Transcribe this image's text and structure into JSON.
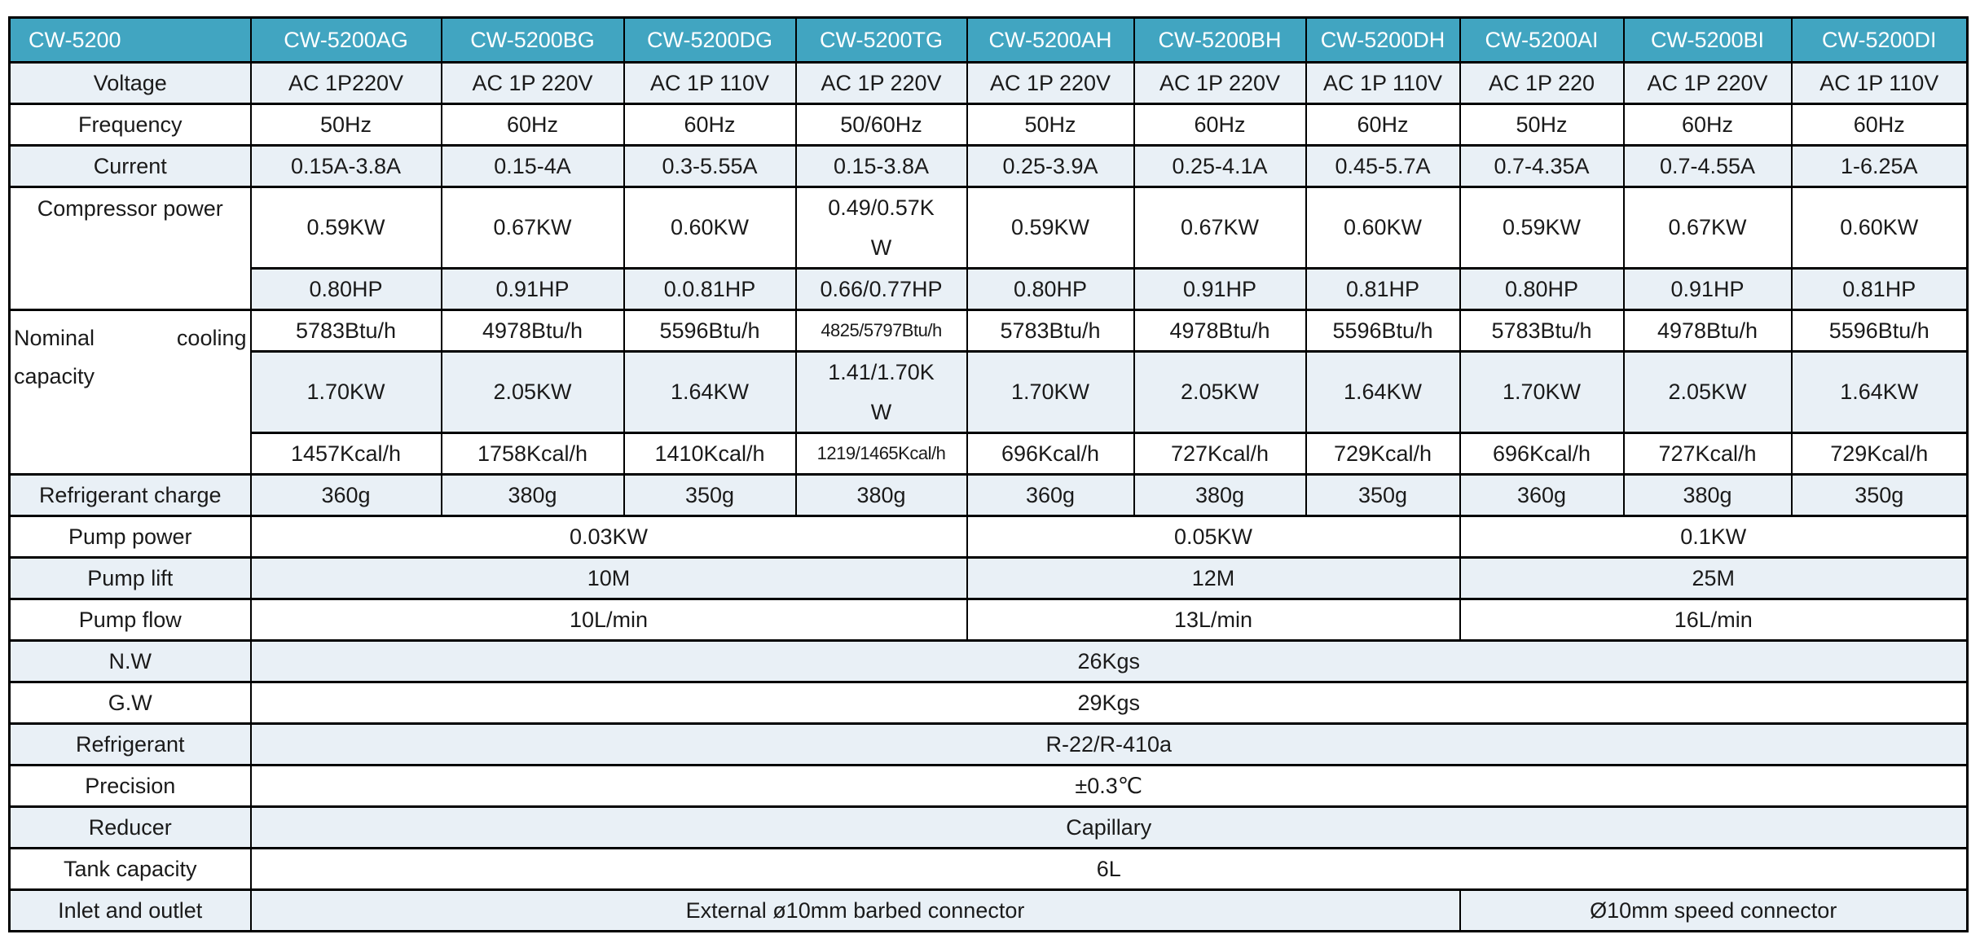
{
  "colors": {
    "header_bg": "#41a5c1",
    "header_text": "#ffffff",
    "shade_row_bg": "#e9f0f6",
    "border": "#000000"
  },
  "table": {
    "header": {
      "label": "CW-5200",
      "models": [
        "CW-5200AG",
        "CW-5200BG",
        "CW-5200DG",
        "CW-5200TG",
        "CW-5200AH",
        "CW-5200BH",
        "CW-5200DH",
        "CW-5200AI",
        "CW-5200BI",
        "CW-5200DI"
      ]
    },
    "rows": [
      {
        "name": "voltage",
        "shade": true,
        "label": {
          "t": "Voltage"
        },
        "cells": [
          {
            "t": "AC 1P220V"
          },
          {
            "t": "AC 1P 220V"
          },
          {
            "t": "AC 1P 110V"
          },
          {
            "t": "AC 1P 220V"
          },
          {
            "t": "AC 1P 220V"
          },
          {
            "t": "AC 1P 220V"
          },
          {
            "t": "AC 1P 110V"
          },
          {
            "t": "AC 1P 220"
          },
          {
            "t": "AC 1P 220V"
          },
          {
            "t": "AC 1P 110V"
          }
        ]
      },
      {
        "name": "frequency",
        "shade": false,
        "label": {
          "t": "Frequency"
        },
        "cells": [
          {
            "t": "50Hz"
          },
          {
            "t": "60Hz"
          },
          {
            "t": "60Hz"
          },
          {
            "t": "50/60Hz"
          },
          {
            "t": "50Hz"
          },
          {
            "t": "60Hz"
          },
          {
            "t": "60Hz"
          },
          {
            "t": "50Hz"
          },
          {
            "t": "60Hz"
          },
          {
            "t": "60Hz"
          }
        ]
      },
      {
        "name": "current",
        "shade": true,
        "label": {
          "t": "Current"
        },
        "cells": [
          {
            "t": "0.15A-3.8A"
          },
          {
            "t": "0.15-4A"
          },
          {
            "t": "0.3-5.55A"
          },
          {
            "t": "0.15-3.8A"
          },
          {
            "t": "0.25-3.9A"
          },
          {
            "t": "0.25-4.1A"
          },
          {
            "t": "0.45-5.7A"
          },
          {
            "t": "0.7-4.35A"
          },
          {
            "t": "0.7-4.55A"
          },
          {
            "t": "1-6.25A"
          }
        ]
      },
      {
        "name": "compressor-power-kw",
        "shade": false,
        "tall": true,
        "label": {
          "t": "Compressor power",
          "rows": 2,
          "top": true
        },
        "cells": [
          {
            "t": "0.59KW"
          },
          {
            "t": "0.67KW"
          },
          {
            "t": "0.60KW"
          },
          {
            "t": "0.49/0.57K\nW",
            "pre": true
          },
          {
            "t": "0.59KW"
          },
          {
            "t": "0.67KW"
          },
          {
            "t": "0.60KW"
          },
          {
            "t": "0.59KW"
          },
          {
            "t": "0.67KW"
          },
          {
            "t": "0.60KW"
          }
        ]
      },
      {
        "name": "compressor-power-hp",
        "shade": true,
        "cells": [
          {
            "t": "0.80HP"
          },
          {
            "t": "0.91HP"
          },
          {
            "t": "0.0.81HP"
          },
          {
            "t": "0.66/0.77HP"
          },
          {
            "t": "0.80HP"
          },
          {
            "t": "0.91HP"
          },
          {
            "t": "0.81HP"
          },
          {
            "t": "0.80HP"
          },
          {
            "t": "0.91HP"
          },
          {
            "t": "0.81HP"
          }
        ]
      },
      {
        "name": "cooling-capacity-btu",
        "shade": false,
        "label": {
          "t": "Nominal cooling capacity",
          "rows": 3,
          "top": true,
          "justify": true
        },
        "cells": [
          {
            "t": "5783Btu/h"
          },
          {
            "t": "4978Btu/h"
          },
          {
            "t": "5596Btu/h"
          },
          {
            "t": "4825/5797Btu/h",
            "small": true
          },
          {
            "t": "5783Btu/h"
          },
          {
            "t": "4978Btu/h"
          },
          {
            "t": "5596Btu/h"
          },
          {
            "t": "5783Btu/h"
          },
          {
            "t": "4978Btu/h"
          },
          {
            "t": "5596Btu/h"
          }
        ]
      },
      {
        "name": "cooling-capacity-kw",
        "shade": true,
        "tall": true,
        "cells": [
          {
            "t": "1.70KW"
          },
          {
            "t": "2.05KW"
          },
          {
            "t": "1.64KW"
          },
          {
            "t": "1.41/1.70K\nW",
            "pre": true
          },
          {
            "t": "1.70KW"
          },
          {
            "t": "2.05KW"
          },
          {
            "t": "1.64KW"
          },
          {
            "t": "1.70KW"
          },
          {
            "t": "2.05KW"
          },
          {
            "t": "1.64KW"
          }
        ]
      },
      {
        "name": "cooling-capacity-kcal",
        "shade": false,
        "cells": [
          {
            "t": "1457Kcal/h"
          },
          {
            "t": "1758Kcal/h"
          },
          {
            "t": "1410Kcal/h"
          },
          {
            "t": "1219/1465Kcal/h",
            "small": true
          },
          {
            "t": "696Kcal/h"
          },
          {
            "t": "727Kcal/h"
          },
          {
            "t": "729Kcal/h"
          },
          {
            "t": "696Kcal/h"
          },
          {
            "t": "727Kcal/h"
          },
          {
            "t": "729Kcal/h"
          }
        ]
      },
      {
        "name": "refrigerant-charge",
        "shade": true,
        "label": {
          "t": "Refrigerant charge"
        },
        "cells": [
          {
            "t": "360g"
          },
          {
            "t": "380g"
          },
          {
            "t": "350g"
          },
          {
            "t": "380g"
          },
          {
            "t": "360g"
          },
          {
            "t": "380g"
          },
          {
            "t": "350g"
          },
          {
            "t": "360g"
          },
          {
            "t": "380g"
          },
          {
            "t": "350g"
          }
        ]
      },
      {
        "name": "pump-power",
        "shade": false,
        "label": {
          "t": "Pump power"
        },
        "cells": [
          {
            "t": "0.03KW",
            "span": 4
          },
          {
            "t": "0.05KW",
            "span": 3
          },
          {
            "t": "0.1KW",
            "span": 3
          }
        ]
      },
      {
        "name": "pump-lift",
        "shade": true,
        "label": {
          "t": "Pump lift"
        },
        "cells": [
          {
            "t": "10M",
            "span": 4
          },
          {
            "t": "12M",
            "span": 3
          },
          {
            "t": "25M",
            "span": 3
          }
        ]
      },
      {
        "name": "pump-flow",
        "shade": false,
        "label": {
          "t": "Pump flow"
        },
        "cells": [
          {
            "t": "10L/min",
            "span": 4
          },
          {
            "t": "13L/min",
            "span": 3
          },
          {
            "t": "16L/min",
            "span": 3
          }
        ]
      },
      {
        "name": "net-weight",
        "shade": true,
        "label": {
          "t": "N.W"
        },
        "cells": [
          {
            "t": "26Kgs",
            "span": 10
          }
        ]
      },
      {
        "name": "gross-weight",
        "shade": false,
        "label": {
          "t": "G.W"
        },
        "cells": [
          {
            "t": "29Kgs",
            "span": 10
          }
        ]
      },
      {
        "name": "refrigerant",
        "shade": true,
        "label": {
          "t": "Refrigerant"
        },
        "cells": [
          {
            "t": "R-22/R-410a",
            "span": 10
          }
        ]
      },
      {
        "name": "precision",
        "shade": false,
        "label": {
          "t": "Precision"
        },
        "cells": [
          {
            "t": "±0.3℃",
            "span": 10
          }
        ]
      },
      {
        "name": "reducer",
        "shade": true,
        "label": {
          "t": "Reducer"
        },
        "cells": [
          {
            "t": "Capillary",
            "span": 10
          }
        ]
      },
      {
        "name": "tank-capacity",
        "shade": false,
        "label": {
          "t": "Tank capacity"
        },
        "cells": [
          {
            "t": "6L",
            "span": 10
          }
        ]
      },
      {
        "name": "inlet-outlet",
        "shade": true,
        "label": {
          "t": "Inlet and outlet"
        },
        "cells": [
          {
            "t": "External ø10mm barbed connector",
            "span": 7
          },
          {
            "t": "Ø10mm speed connector",
            "span": 3
          }
        ]
      }
    ]
  }
}
